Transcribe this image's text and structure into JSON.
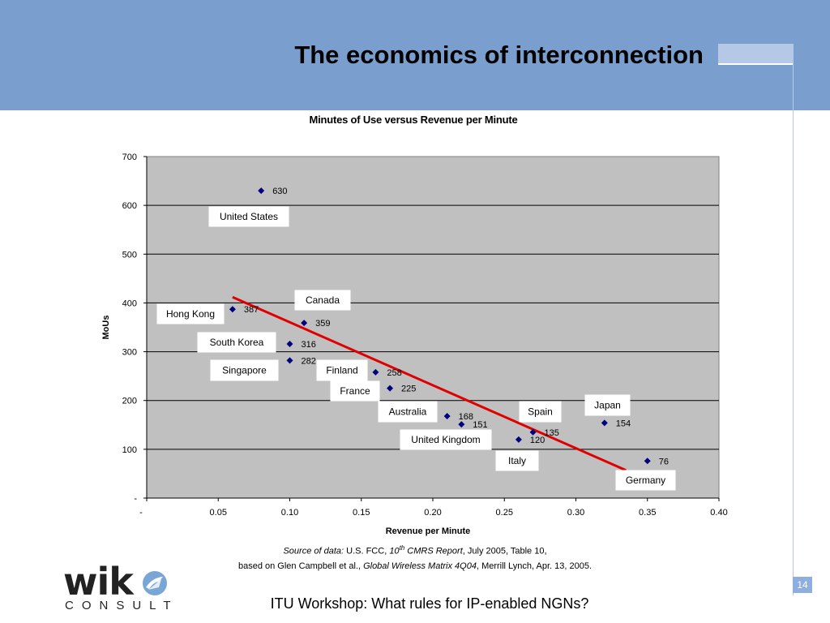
{
  "slide": {
    "title": "The economics of interconnection",
    "footer": "ITU Workshop: What rules for IP-enabled NGNs?",
    "page_number": "14"
  },
  "source": {
    "line1_prefix": "Source of data:",
    "line1_text1": " U.S. FCC, ",
    "line1_italic_pre": "10",
    "line1_sup": "th",
    "line1_italic_post": " CMRS Report",
    "line1_text2": ", July 2005, Table 10,",
    "line2_text1": "based on Glen Campbell et al., ",
    "line2_italic": "Global Wireless Matrix 4Q04",
    "line2_text2": ", Merrill Lynch, Apr. 13, 2005."
  },
  "logo": {
    "word": "wik",
    "sub": "CONSULT"
  },
  "colors": {
    "header": "#7a9fcf",
    "plot_bg": "#c0c0c0",
    "marker": "#00007f",
    "trend": "#e00000"
  },
  "chart_data": {
    "type": "scatter",
    "title": "Minutes of Use versus Revenue per Minute",
    "xlabel": "Revenue per Minute",
    "ylabel": "MoUs",
    "xlim": [
      0,
      0.4
    ],
    "ylim": [
      0,
      700
    ],
    "x_ticks": [
      {
        "v": 0,
        "label": "-"
      },
      {
        "v": 0.05,
        "label": "0.05"
      },
      {
        "v": 0.1,
        "label": "0.10"
      },
      {
        "v": 0.15,
        "label": "0.15"
      },
      {
        "v": 0.2,
        "label": "0.20"
      },
      {
        "v": 0.25,
        "label": "0.25"
      },
      {
        "v": 0.3,
        "label": "0.30"
      },
      {
        "v": 0.35,
        "label": "0.35"
      },
      {
        "v": 0.4,
        "label": "0.40"
      }
    ],
    "y_ticks": [
      {
        "v": 0,
        "label": "-"
      },
      {
        "v": 100,
        "label": "100"
      },
      {
        "v": 200,
        "label": "200"
      },
      {
        "v": 300,
        "label": "300"
      },
      {
        "v": 400,
        "label": "400"
      },
      {
        "v": 500,
        "label": "500"
      },
      {
        "v": 600,
        "label": "600"
      },
      {
        "v": 700,
        "label": "700"
      }
    ],
    "grid": "horizontal",
    "points": [
      {
        "country": "United States",
        "x": 0.08,
        "y": 630,
        "label": "630"
      },
      {
        "country": "Hong Kong",
        "x": 0.06,
        "y": 387,
        "label": "387"
      },
      {
        "country": "Canada",
        "x": 0.11,
        "y": 359,
        "label": "359"
      },
      {
        "country": "South Korea",
        "x": 0.1,
        "y": 316,
        "label": "316"
      },
      {
        "country": "Singapore",
        "x": 0.1,
        "y": 282,
        "label": "282"
      },
      {
        "country": "Finland",
        "x": 0.16,
        "y": 258,
        "label": "258"
      },
      {
        "country": "France",
        "x": 0.17,
        "y": 225,
        "label": "225"
      },
      {
        "country": "Australia",
        "x": 0.21,
        "y": 168,
        "label": "168"
      },
      {
        "country": "United Kingdom",
        "x": 0.22,
        "y": 151,
        "label": "151"
      },
      {
        "country": "Spain",
        "x": 0.27,
        "y": 135,
        "label": "135"
      },
      {
        "country": "Italy",
        "x": 0.26,
        "y": 120,
        "label": "120"
      },
      {
        "country": "Japan",
        "x": 0.32,
        "y": 154,
        "label": "154"
      },
      {
        "country": "Germany",
        "x": 0.35,
        "y": 76,
        "label": "76"
      }
    ],
    "trendline": {
      "x": [
        0.06,
        0.335
      ],
      "y": [
        412,
        57
      ]
    }
  }
}
